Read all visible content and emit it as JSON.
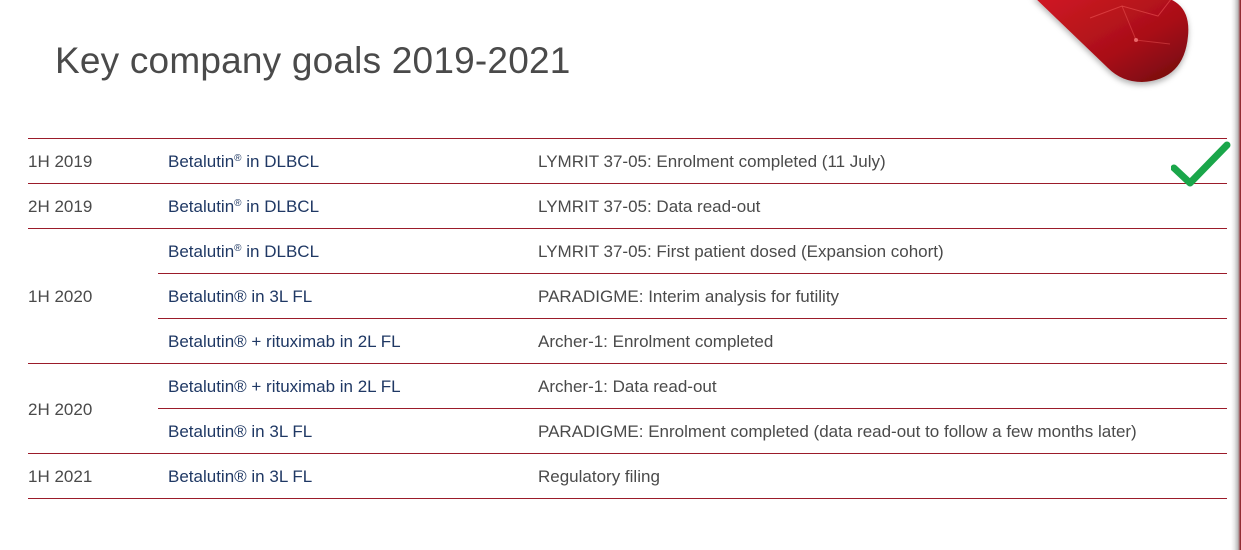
{
  "title": "Key company goals 2019-2021",
  "rows": [
    {
      "period": "1H 2019",
      "program_name": "Betalutin",
      "program_mark": "®",
      "program_rest": " in DLBCL",
      "milestone": "LYMRIT 37-05: Enrolment completed (11 July)",
      "completed": true
    },
    {
      "period": "2H 2019",
      "program_name": "Betalutin",
      "program_mark": "®",
      "program_rest": " in DLBCL",
      "milestone": "LYMRIT 37-05: Data read-out"
    },
    {
      "period": "",
      "program_name": "Betalutin",
      "program_mark": "®",
      "program_rest": " in DLBCL",
      "milestone": "LYMRIT 37-05: First patient dosed (Expansion cohort)"
    },
    {
      "period": "1H 2020",
      "program_name": "Betalutin® in 3L FL",
      "program_mark": "",
      "program_rest": "",
      "milestone": "PARADIGME: Interim analysis for futility"
    },
    {
      "period": "",
      "program_name": "Betalutin® + rituximab in 2L FL",
      "program_mark": "",
      "program_rest": "",
      "milestone": "Archer-1: Enrolment completed"
    },
    {
      "period": "",
      "program_name": "Betalutin® + rituximab in 2L FL",
      "program_mark": "",
      "program_rest": "",
      "milestone": "Archer-1: Data read-out"
    },
    {
      "period": "2H 2020",
      "program_name": "Betalutin® in 3L FL",
      "program_mark": "",
      "program_rest": "",
      "milestone": "PARADIGME: Enrolment completed (data read-out to follow a few months later)"
    },
    {
      "period": "1H 2021",
      "program_name": "Betalutin® in 3L FL",
      "program_mark": "",
      "program_rest": "",
      "milestone": "Regulatory filing"
    }
  ],
  "colors": {
    "rule": "#9b1b2a",
    "program_text": "#1f3864",
    "body_text": "#4a4a4a",
    "check": "#1aa64a",
    "brand_red": "#b3121c"
  },
  "icons": {
    "completed": "checkmark-icon",
    "logo": "red-pill-logo"
  }
}
